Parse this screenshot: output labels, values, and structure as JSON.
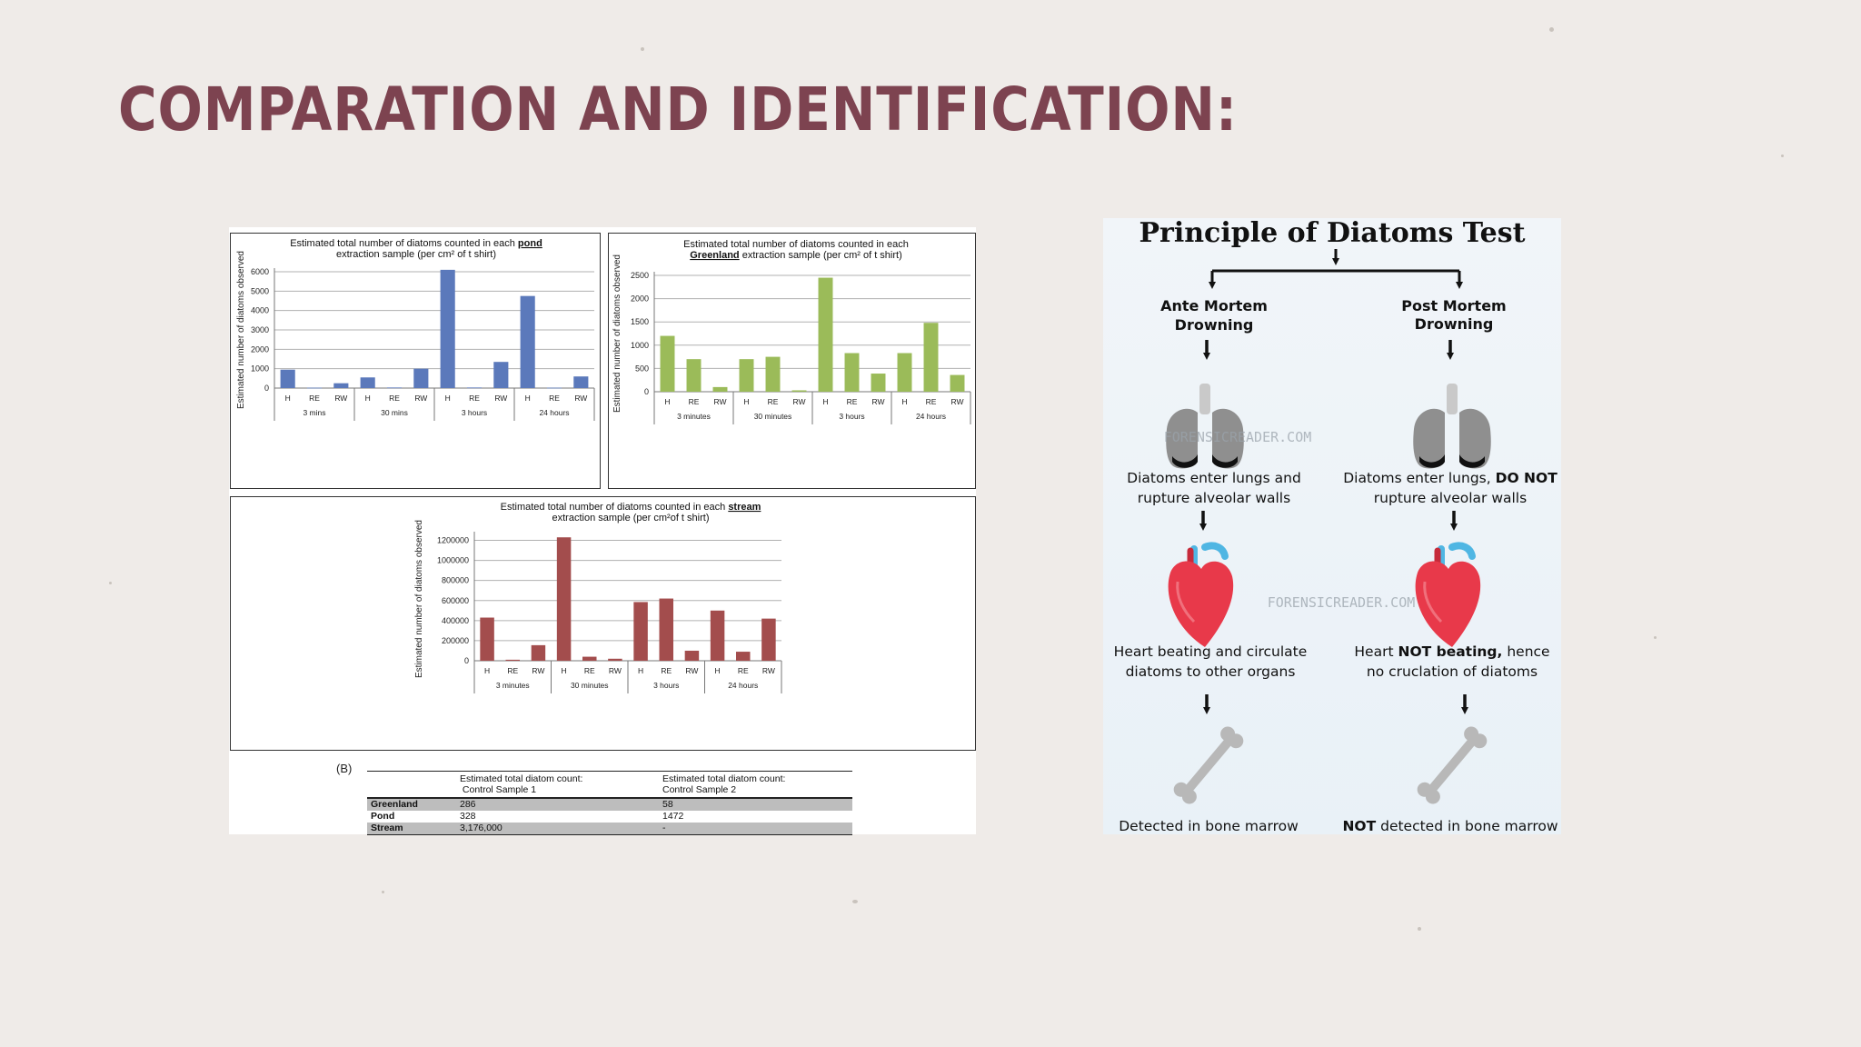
{
  "slide": {
    "title": "Comparation and identification:"
  },
  "chart_data": [
    {
      "id": "pond",
      "type": "bar",
      "title_line1_pre": "Estimated total number of diatoms counted in each ",
      "title_line1_key": "pond",
      "title_line1_post": "",
      "title_line2": "extraction sample (per cm² of t shirt)",
      "title_line2_lead": "",
      "ylabel": "Estimated number of diatoms observed",
      "ylim": [
        0,
        6000
      ],
      "yticks": [
        "0",
        "1000",
        "2000",
        "3000",
        "4000",
        "5000",
        "6000"
      ],
      "categories": [
        "H",
        "RE",
        "RW",
        "H",
        "RE",
        "RW",
        "H",
        "RE",
        "RW",
        "H",
        "RE",
        "RW"
      ],
      "groups": [
        "3 mins",
        "30 mins",
        "3 hours",
        "24 hours"
      ],
      "values": [
        950,
        20,
        250,
        550,
        30,
        1000,
        6100,
        30,
        1350,
        4750,
        20,
        600
      ],
      "color": "#5b79bb"
    },
    {
      "id": "greenland",
      "type": "bar",
      "title_line1_pre": "Estimated total number of diatoms counted in each",
      "title_line1_key": "",
      "title_line1_post": "",
      "title_line2_lead": "Greenland",
      "title_line2": " extraction sample (per cm² of t shirt)",
      "ylabel": "Estimated number of diatoms observed",
      "ylim": [
        0,
        2500
      ],
      "yticks": [
        "0",
        "500",
        "1000",
        "1500",
        "2000",
        "2500"
      ],
      "categories": [
        "H",
        "RE",
        "RW",
        "H",
        "RE",
        "RW",
        "H",
        "RE",
        "RW",
        "H",
        "RE",
        "RW"
      ],
      "groups": [
        "3 minutes",
        "30 minutes",
        "3 hours",
        "24 hours"
      ],
      "values": [
        1200,
        700,
        100,
        700,
        750,
        30,
        2450,
        830,
        390,
        830,
        1480,
        360
      ],
      "color": "#9bbb59"
    },
    {
      "id": "stream",
      "type": "bar",
      "title_line1_pre": "Estimated total number of diatoms counted in each ",
      "title_line1_key": "stream",
      "title_line1_post": "",
      "title_line2_lead": "",
      "title_line2": "extraction sample (per cm²of t shirt)",
      "ylabel": "Estimated number of diatoms observed",
      "ylim": [
        0,
        1250000
      ],
      "yticks": [
        "0",
        "200000",
        "400000",
        "600000",
        "800000",
        "1000000",
        "1200000"
      ],
      "categories": [
        "H",
        "RE",
        "RW",
        "H",
        "RE",
        "RW",
        "H",
        "RE",
        "RW",
        "H",
        "RE",
        "RW"
      ],
      "groups": [
        "3 minutes",
        "30 minutes",
        "3 hours",
        "24 hours"
      ],
      "values": [
        430000,
        10000,
        155000,
        1230000,
        40000,
        20000,
        585000,
        620000,
        100000,
        500000,
        90000,
        420000
      ],
      "color": "#a34d4d"
    },
    {
      "id": "control-table",
      "type": "table",
      "label": "(B)",
      "columns": [
        "",
        "Estimated total diatom count:\nControl Sample 1",
        "Estimated total diatom count:\nControl Sample 2"
      ],
      "col1_line1": "Estimated total diatom count:",
      "col1_line2": "Control Sample 1",
      "col2_line1": "Estimated total diatom count:",
      "col2_line2": "Control Sample 2",
      "rows": [
        {
          "label": "Greenland",
          "c1": "286",
          "c2": "58"
        },
        {
          "label": "Pond",
          "c1": "328",
          "c2": "1472"
        },
        {
          "label": "Stream",
          "c1": "3,176,000",
          "c2": "-"
        }
      ]
    }
  ],
  "infographic": {
    "title": "Principle of Diatoms Test",
    "left_heading_1": "Ante Mortem",
    "left_heading_2": "Drowning",
    "right_heading_1": "Post Mortem",
    "right_heading_2": "Drowning",
    "left_lungs_1": "Diatoms enter lungs and",
    "left_lungs_2": "rupture alveolar walls",
    "right_lungs_1a": "Diatoms enter lungs, ",
    "right_lungs_1b": "DO NOT",
    "right_lungs_2": "rupture alveolar walls",
    "left_heart_1": "Heart beating and circulate",
    "left_heart_2": "diatoms to other organs",
    "right_heart_1a": "Heart ",
    "right_heart_1b": "NOT beating,",
    "right_heart_1c": " hence",
    "right_heart_2": "no cruclation of diatoms",
    "left_bone": "Detected in bone marrow",
    "right_bone_a": "NOT",
    "right_bone_b": " detected in bone marrow",
    "watermark": "FORENSICREADER.COM",
    "lung_color": "#8f8f8f",
    "heart_color": "#e8394a",
    "vessel_color": "#4fb6e3"
  }
}
